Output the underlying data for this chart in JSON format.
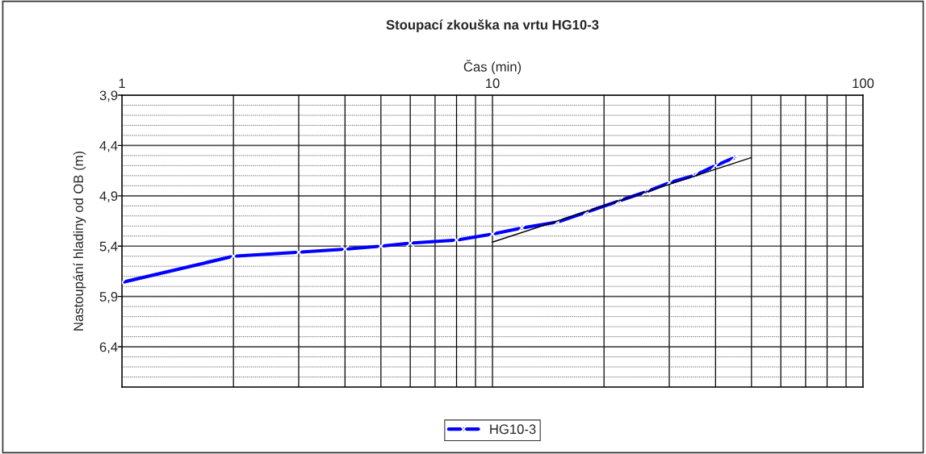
{
  "chart_data": {
    "type": "line",
    "title": "Stoupací zkouška na vrtu HG10-3",
    "xlabel": "Čas (min)",
    "ylabel": "Nastoupání hladiny od OB (m)",
    "log": "x",
    "xlim": [
      1,
      100
    ],
    "ylim": [
      6.8,
      3.9
    ],
    "xticks": [
      1,
      {
        "value": 2,
        "label": null
      },
      {
        "value": 3,
        "label": null
      },
      {
        "value": 4,
        "label": null
      },
      {
        "value": 5,
        "label": null
      },
      {
        "value": 6,
        "label": null
      },
      {
        "value": 7,
        "label": null
      },
      {
        "value": 8,
        "label": null
      },
      {
        "value": 9,
        "label": null
      },
      10,
      {
        "value": 20,
        "label": null
      },
      {
        "value": 30,
        "label": null
      },
      {
        "value": 40,
        "label": null
      },
      {
        "value": 50,
        "label": null
      },
      {
        "value": 60,
        "label": null
      },
      {
        "value": 70,
        "label": null
      },
      {
        "value": 80,
        "label": null
      },
      {
        "value": 90,
        "label": null
      },
      100
    ],
    "yticks": [
      {
        "value": 3.9,
        "label": "3,9"
      },
      {
        "value": 4.0,
        "label": null
      },
      {
        "value": 4.1,
        "label": null
      },
      {
        "value": 4.2,
        "label": null
      },
      {
        "value": 4.3,
        "label": null
      },
      {
        "value": 4.4,
        "label": "4,4"
      },
      {
        "value": 4.5,
        "label": null
      },
      {
        "value": 4.6,
        "label": null
      },
      {
        "value": 4.7,
        "label": null
      },
      {
        "value": 4.8,
        "label": null
      },
      {
        "value": 4.9,
        "label": "4,9"
      },
      {
        "value": 5.0,
        "label": null
      },
      {
        "value": 5.1,
        "label": null
      },
      {
        "value": 5.2,
        "label": null
      },
      {
        "value": 5.3,
        "label": null
      },
      {
        "value": 5.4,
        "label": "5,4"
      },
      {
        "value": 5.5,
        "label": null
      },
      {
        "value": 5.6,
        "label": null
      },
      {
        "value": 5.7,
        "label": null
      },
      {
        "value": 5.8,
        "label": null
      },
      {
        "value": 5.9,
        "label": "5,9"
      },
      {
        "value": 6.0,
        "label": null
      },
      {
        "value": 6.1,
        "label": null
      },
      {
        "value": 6.2,
        "label": null
      },
      {
        "value": 6.3,
        "label": null
      },
      {
        "value": 6.4,
        "label": "6,4"
      },
      {
        "value": 6.5,
        "label": null
      },
      {
        "value": 6.6,
        "label": null
      },
      {
        "value": 6.7,
        "label": null
      },
      {
        "value": 6.8,
        "label": null
      }
    ],
    "grid": true,
    "legend": "bottom",
    "series": [
      {
        "name": "HG10-3",
        "color": "#0000ff",
        "marker": "cross",
        "x": [
          1,
          2,
          3,
          4,
          5,
          6,
          8,
          10,
          12,
          15,
          18,
          22,
          26,
          30,
          35,
          40,
          45
        ],
        "values": [
          5.76,
          5.5,
          5.46,
          5.43,
          5.4,
          5.37,
          5.34,
          5.28,
          5.22,
          5.16,
          5.06,
          4.95,
          4.86,
          4.77,
          4.7,
          4.6,
          4.52
        ]
      },
      {
        "color": "#000000",
        "marker": "none",
        "x": [
          10,
          50
        ],
        "values": [
          5.36,
          4.52
        ]
      }
    ]
  }
}
